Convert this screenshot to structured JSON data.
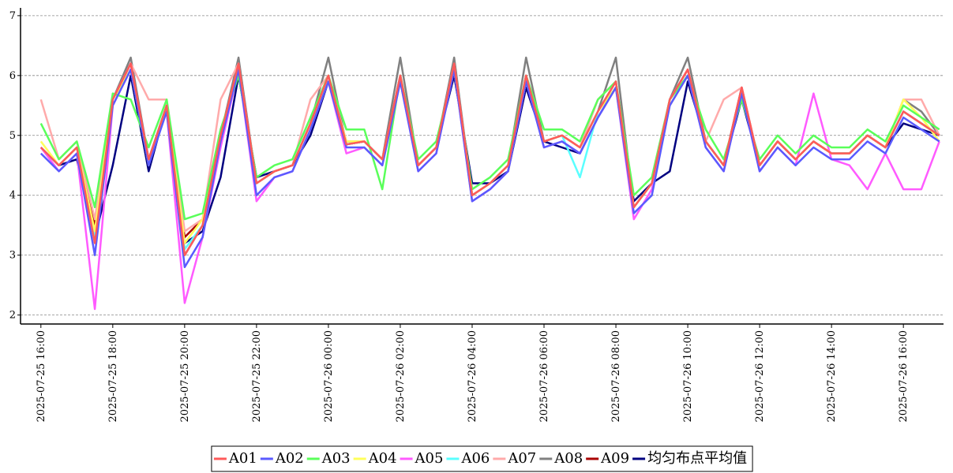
{
  "chart_data": {
    "type": "line",
    "x": [
      "2025-07-25 16:00",
      "2025-07-25 16:30",
      "2025-07-25 17:00",
      "2025-07-25 17:30",
      "2025-07-25 18:00",
      "2025-07-25 18:30",
      "2025-07-25 19:00",
      "2025-07-25 19:30",
      "2025-07-25 20:00",
      "2025-07-25 20:30",
      "2025-07-25 21:00",
      "2025-07-25 21:30",
      "2025-07-25 22:00",
      "2025-07-25 22:30",
      "2025-07-25 23:00",
      "2025-07-25 23:30",
      "2025-07-26 00:00",
      "2025-07-26 00:30",
      "2025-07-26 01:00",
      "2025-07-26 01:30",
      "2025-07-26 02:00",
      "2025-07-26 02:30",
      "2025-07-26 03:00",
      "2025-07-26 03:30",
      "2025-07-26 04:00",
      "2025-07-26 04:30",
      "2025-07-26 05:00",
      "2025-07-26 05:30",
      "2025-07-26 06:00",
      "2025-07-26 06:30",
      "2025-07-26 07:00",
      "2025-07-26 07:30",
      "2025-07-26 08:00",
      "2025-07-26 08:30",
      "2025-07-26 09:00",
      "2025-07-26 09:30",
      "2025-07-26 10:00",
      "2025-07-26 10:30",
      "2025-07-26 11:00",
      "2025-07-26 11:30",
      "2025-07-26 12:00",
      "2025-07-26 12:30",
      "2025-07-26 13:00",
      "2025-07-26 13:30",
      "2025-07-26 14:00",
      "2025-07-26 14:30",
      "2025-07-26 15:00",
      "2025-07-26 15:30",
      "2025-07-26 16:00",
      "2025-07-26 16:30",
      "2025-07-26 17:00"
    ],
    "xlim": [
      "2025-07-25 15:26",
      "2025-07-26 17:07"
    ],
    "xticks": [
      "2025-07-25 16:00",
      "2025-07-25 18:00",
      "2025-07-25 20:00",
      "2025-07-25 22:00",
      "2025-07-26 00:00",
      "2025-07-26 02:00",
      "2025-07-26 04:00",
      "2025-07-26 06:00",
      "2025-07-26 08:00",
      "2025-07-26 10:00",
      "2025-07-26 12:00",
      "2025-07-26 14:00",
      "2025-07-26 16:00"
    ],
    "ylim": [
      1.85,
      7.13
    ],
    "yticks": [
      2,
      3,
      4,
      5,
      6,
      7
    ],
    "grid": true,
    "legend": "bottom",
    "series": [
      {
        "name": "A01",
        "color": "#ff5a5a",
        "values": [
          4.8,
          4.5,
          4.8,
          3.2,
          5.6,
          6.2,
          4.6,
          5.5,
          3.0,
          3.5,
          5.0,
          6.2,
          4.2,
          4.4,
          4.5,
          5.2,
          6.0,
          4.85,
          4.9,
          4.6,
          6.0,
          4.5,
          4.8,
          6.2,
          4.0,
          4.2,
          4.5,
          6.0,
          4.9,
          5.0,
          4.8,
          5.4,
          5.9,
          3.8,
          4.2,
          5.6,
          6.1,
          4.9,
          4.5,
          5.8,
          4.5,
          4.9,
          4.6,
          4.9,
          4.7,
          4.7,
          5.0,
          4.8,
          5.4,
          5.2,
          5.0
        ]
      },
      {
        "name": "A02",
        "color": "#5a5aff",
        "values": [
          4.7,
          4.4,
          4.7,
          3.0,
          5.5,
          6.1,
          4.5,
          5.4,
          2.8,
          3.3,
          4.9,
          6.1,
          4.0,
          4.3,
          4.4,
          5.1,
          5.9,
          4.8,
          4.8,
          4.5,
          5.9,
          4.4,
          4.7,
          6.1,
          3.9,
          4.1,
          4.4,
          5.9,
          4.8,
          4.9,
          4.7,
          5.3,
          5.8,
          3.7,
          4.0,
          5.5,
          6.0,
          4.8,
          4.4,
          5.7,
          4.4,
          4.8,
          4.5,
          4.8,
          4.6,
          4.6,
          4.9,
          4.7,
          5.3,
          5.1,
          4.9
        ]
      },
      {
        "name": "A03",
        "color": "#5aff5a",
        "values": [
          5.2,
          4.6,
          4.9,
          3.8,
          5.7,
          5.6,
          4.8,
          5.6,
          3.6,
          3.7,
          5.1,
          6.0,
          4.3,
          4.5,
          4.6,
          5.3,
          6.0,
          5.1,
          5.1,
          4.1,
          6.0,
          4.6,
          4.9,
          6.1,
          4.1,
          4.3,
          4.6,
          6.0,
          5.1,
          5.1,
          4.9,
          5.6,
          5.9,
          4.0,
          4.3,
          5.6,
          6.0,
          5.1,
          4.6,
          5.6,
          4.6,
          5.0,
          4.7,
          5.0,
          4.8,
          4.8,
          5.1,
          4.9,
          5.5,
          5.3,
          5.1
        ]
      },
      {
        "name": "A04",
        "color": "#ffff5a",
        "values": [
          4.9,
          4.5,
          4.8,
          3.4,
          5.6,
          6.1,
          4.5,
          5.5,
          3.2,
          3.6,
          5.0,
          6.1,
          4.2,
          4.4,
          4.5,
          5.2,
          5.9,
          4.9,
          4.9,
          4.6,
          5.9,
          4.5,
          4.8,
          6.1,
          4.0,
          4.2,
          4.5,
          5.9,
          4.9,
          5.0,
          4.8,
          5.4,
          5.8,
          3.8,
          4.2,
          5.5,
          6.0,
          4.9,
          4.5,
          5.7,
          4.5,
          4.9,
          4.6,
          4.9,
          4.7,
          4.7,
          5.0,
          4.8,
          5.6,
          5.3,
          4.9
        ]
      },
      {
        "name": "A05",
        "color": "#ff5aff",
        "values": [
          4.8,
          4.4,
          4.7,
          2.1,
          5.5,
          6.1,
          4.6,
          5.4,
          2.2,
          3.3,
          4.8,
          6.1,
          3.9,
          4.3,
          4.4,
          5.1,
          5.9,
          4.7,
          4.8,
          4.5,
          5.9,
          4.4,
          4.7,
          6.1,
          3.9,
          4.1,
          4.4,
          5.9,
          4.8,
          4.9,
          4.7,
          5.3,
          5.8,
          3.6,
          4.1,
          5.5,
          6.0,
          4.8,
          4.4,
          5.7,
          4.4,
          4.8,
          4.5,
          5.7,
          4.6,
          4.5,
          4.1,
          4.7,
          4.1,
          4.1,
          4.9
        ]
      },
      {
        "name": "A06",
        "color": "#5affff",
        "values": [
          4.8,
          4.5,
          4.8,
          3.3,
          5.6,
          6.1,
          4.6,
          5.5,
          3.1,
          3.5,
          5.0,
          6.1,
          4.2,
          4.4,
          4.5,
          5.2,
          5.9,
          4.85,
          4.9,
          4.6,
          5.9,
          4.5,
          4.8,
          6.1,
          4.0,
          4.2,
          4.5,
          5.9,
          4.9,
          5.0,
          4.3,
          5.4,
          5.8,
          3.8,
          4.2,
          5.5,
          6.0,
          4.9,
          4.5,
          5.7,
          4.5,
          4.9,
          4.6,
          4.9,
          4.7,
          4.7,
          5.0,
          4.8,
          5.4,
          5.2,
          5.0
        ]
      },
      {
        "name": "A07",
        "color": "#ffaaaa",
        "values": [
          5.6,
          4.6,
          4.9,
          3.6,
          5.6,
          6.2,
          5.6,
          5.6,
          3.4,
          3.6,
          5.6,
          6.2,
          4.2,
          4.4,
          4.5,
          5.6,
          6.0,
          4.9,
          4.9,
          4.6,
          6.0,
          4.5,
          4.8,
          6.2,
          4.0,
          4.2,
          4.5,
          6.0,
          4.9,
          5.0,
          4.8,
          5.6,
          5.9,
          3.8,
          4.2,
          5.6,
          6.1,
          4.9,
          5.6,
          5.8,
          4.5,
          4.9,
          4.6,
          4.9,
          4.7,
          4.7,
          5.0,
          4.8,
          5.6,
          5.6,
          5.0
        ]
      },
      {
        "name": "A08",
        "color": "#808080",
        "values": [
          4.8,
          4.5,
          4.8,
          3.3,
          5.6,
          6.3,
          4.6,
          5.5,
          3.0,
          3.5,
          5.0,
          6.3,
          4.2,
          4.4,
          4.5,
          5.2,
          6.3,
          4.85,
          4.9,
          4.6,
          6.3,
          4.5,
          4.8,
          6.3,
          4.0,
          4.2,
          4.5,
          6.3,
          4.9,
          5.0,
          4.8,
          5.4,
          6.3,
          3.8,
          4.2,
          5.6,
          6.3,
          4.9,
          4.5,
          5.8,
          4.5,
          4.9,
          4.6,
          4.9,
          4.7,
          4.7,
          5.0,
          4.8,
          5.6,
          5.4,
          5.0
        ]
      },
      {
        "name": "A09",
        "color": "#aa0000",
        "values": [
          4.8,
          4.5,
          4.8,
          3.5,
          5.6,
          6.2,
          4.6,
          5.5,
          3.3,
          3.6,
          5.0,
          6.2,
          4.2,
          4.4,
          4.5,
          5.2,
          6.0,
          4.85,
          4.9,
          4.6,
          6.0,
          4.5,
          4.8,
          6.2,
          4.0,
          4.2,
          4.5,
          6.0,
          4.9,
          5.0,
          4.8,
          5.4,
          5.9,
          3.8,
          4.2,
          5.6,
          6.1,
          4.9,
          4.5,
          5.8,
          4.5,
          4.9,
          4.6,
          4.9,
          4.7,
          4.7,
          5.0,
          4.8,
          5.4,
          5.2,
          5.0
        ]
      },
      {
        "name": "均匀布点平均值",
        "color": "#000080",
        "values": [
          4.8,
          4.5,
          4.6,
          3.3,
          4.5,
          6.0,
          4.4,
          5.5,
          3.2,
          3.4,
          4.3,
          6.0,
          4.3,
          4.4,
          4.5,
          5.0,
          5.9,
          4.9,
          4.9,
          4.6,
          5.9,
          4.5,
          4.8,
          6.0,
          4.2,
          4.2,
          4.4,
          5.8,
          4.9,
          4.8,
          4.7,
          5.3,
          5.8,
          3.9,
          4.2,
          4.4,
          5.9,
          4.9,
          4.5,
          5.6,
          4.5,
          4.9,
          4.6,
          4.9,
          4.7,
          4.7,
          5.0,
          4.8,
          5.2,
          5.1,
          5.0
        ]
      }
    ]
  }
}
